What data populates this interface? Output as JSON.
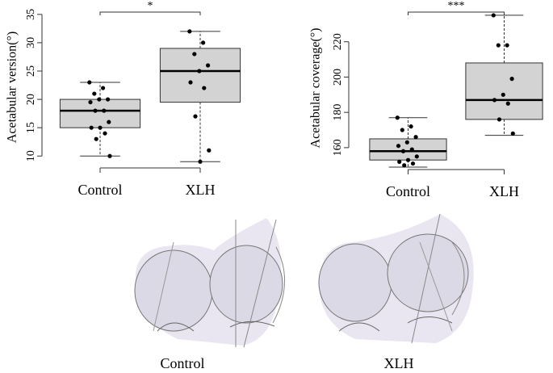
{
  "chart_data": [
    {
      "type": "box",
      "ylabel": "Acetabular version(°)",
      "categories": [
        "Control",
        "XLH"
      ],
      "ylim": [
        7.9,
        36.4
      ],
      "yticks": [
        10,
        15,
        20,
        25,
        30,
        35
      ],
      "significance": "*",
      "color": "#d3d3d3",
      "boxes": [
        {
          "whisker_low": 10,
          "q1": 15,
          "median": 18,
          "q3": 20,
          "whisker_high": 23,
          "points": [
            23,
            22,
            21,
            20,
            20,
            19.5,
            18,
            18,
            16,
            15,
            15,
            14,
            13,
            10
          ]
        },
        {
          "whisker_low": 9,
          "q1": 19.5,
          "median": 25,
          "q3": 29,
          "whisker_high": 32,
          "points": [
            32,
            30,
            28,
            26,
            25,
            23,
            22,
            17,
            11,
            9
          ]
        }
      ]
    },
    {
      "type": "box",
      "ylabel": "Acetabular coverage(°)",
      "categories": [
        "Control",
        "XLH"
      ],
      "ylim": [
        147.6,
        240
      ],
      "yticks": [
        160,
        180,
        200,
        220
      ],
      "significance": "***",
      "color": "#d3d3d3",
      "boxes": [
        {
          "whisker_low": 149,
          "q1": 153,
          "median": 158,
          "q3": 165,
          "whisker_high": 177,
          "points": [
            177,
            172,
            170,
            166,
            163,
            161,
            159,
            158,
            155,
            153,
            152,
            151,
            150
          ]
        },
        {
          "whisker_low": 167,
          "q1": 176,
          "median": 187,
          "q3": 208,
          "whisker_high": 235,
          "points": [
            235,
            218,
            218,
            199,
            190,
            187,
            185,
            176,
            168
          ]
        }
      ]
    }
  ],
  "figure_labels": [
    "Control",
    "XLH"
  ]
}
